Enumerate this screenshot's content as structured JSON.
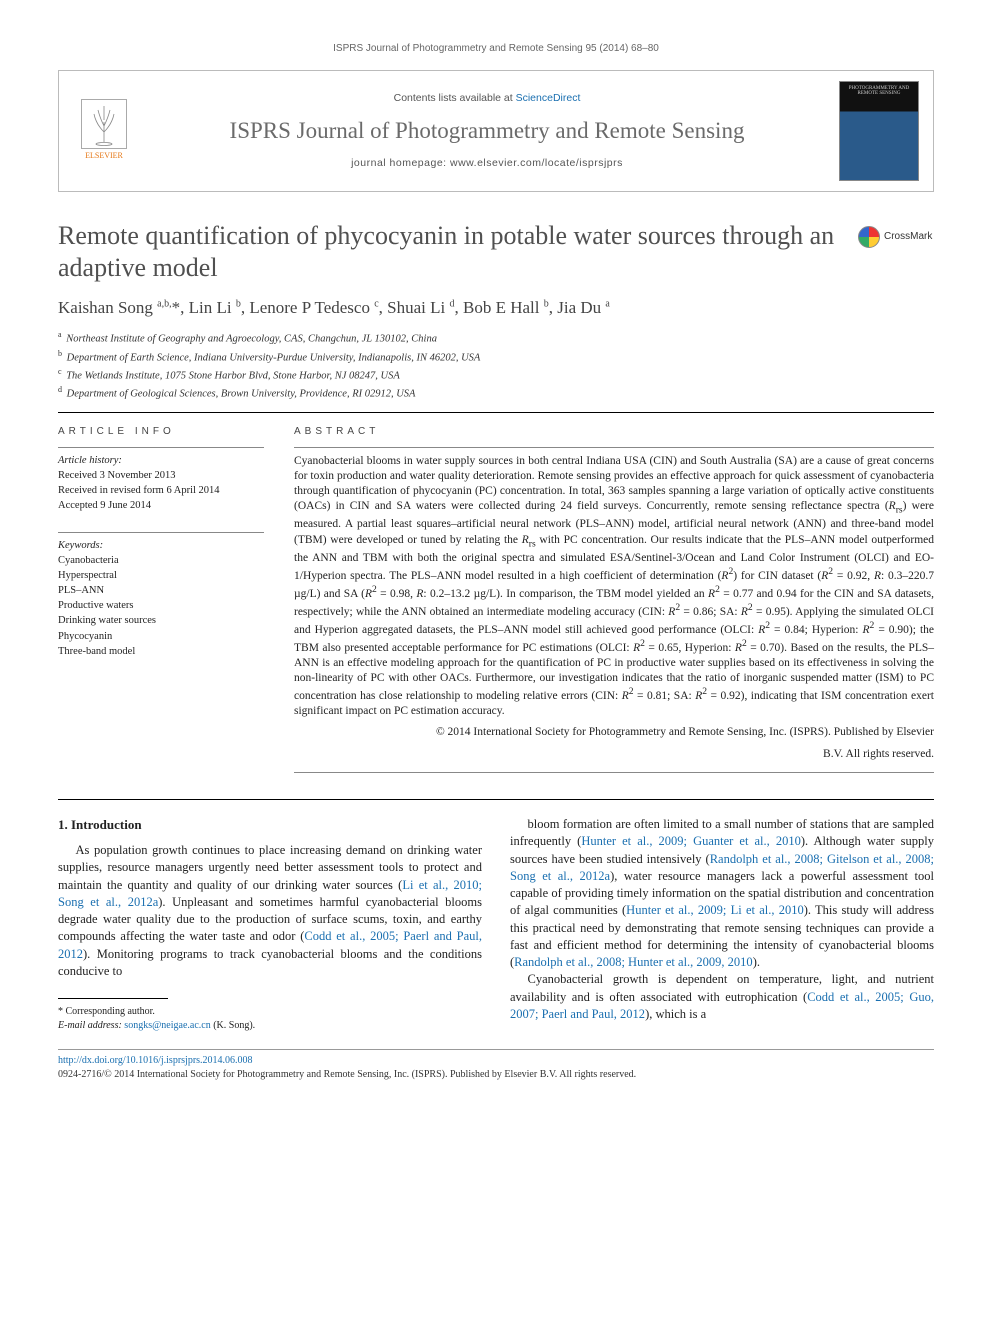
{
  "running_head": "ISPRS Journal of Photogrammetry and Remote Sensing 95 (2014) 68–80",
  "header": {
    "contents_prefix": "Contents lists available at ",
    "contents_link": "ScienceDirect",
    "journal_name": "ISPRS Journal of Photogrammetry and Remote Sensing",
    "homepage_prefix": "journal homepage: ",
    "homepage_url": "www.elsevier.com/locate/isprsjprs",
    "publisher_label": "ELSEVIER",
    "cover_label": "PHOTOGRAMMETRY AND REMOTE SENSING"
  },
  "title": "Remote quantification of phycocyanin in potable water sources through an adaptive model",
  "crossmark_label": "CrossMark",
  "authors_html": "Kaishan Song <sup>a,b,</sup>*, Lin Li <sup>b</sup>, Lenore P Tedesco <sup>c</sup>, Shuai Li <sup>d</sup>, Bob E Hall <sup>b</sup>, Jia Du <sup>a</sup>",
  "affiliations": [
    {
      "key": "a",
      "text": "Northeast Institute of Geography and Agroecology, CAS, Changchun, JL 130102, China"
    },
    {
      "key": "b",
      "text": "Department of Earth Science, Indiana University-Purdue University, Indianapolis, IN 46202, USA"
    },
    {
      "key": "c",
      "text": "The Wetlands Institute, 1075 Stone Harbor Blvd, Stone Harbor, NJ 08247, USA"
    },
    {
      "key": "d",
      "text": "Department of Geological Sciences, Brown University, Providence, RI 02912, USA"
    }
  ],
  "article_info": {
    "heading": "ARTICLE INFO",
    "history_label": "Article history:",
    "received": "Received 3 November 2013",
    "revised": "Received in revised form 6 April 2014",
    "accepted": "Accepted 9 June 2014",
    "keywords_label": "Keywords:",
    "keywords": [
      "Cyanobacteria",
      "Hyperspectral",
      "PLS–ANN",
      "Productive waters",
      "Drinking water sources",
      "Phycocyanin",
      "Three-band model"
    ]
  },
  "abstract": {
    "heading": "ABSTRACT",
    "text_html": "Cyanobacterial blooms in water supply sources in both central Indiana USA (CIN) and South Australia (SA) are a cause of great concerns for toxin production and water quality deterioration. Remote sensing provides an effective approach for quick assessment of cyanobacteria through quantification of phycocyanin (PC) concentration. In total, 363 samples spanning a large variation of optically active constituents (OACs) in CIN and SA waters were collected during 24 field surveys. Concurrently, remote sensing reflectance spectra (<i>R</i><sub>rs</sub>) were measured. A partial least squares–artificial neural network (PLS–ANN) model, artificial neural network (ANN) and three-band model (TBM) were developed or tuned by relating the <i>R</i><sub>rs</sub> with PC concentration. Our results indicate that the PLS–ANN model outperformed the ANN and TBM with both the original spectra and simulated ESA/Sentinel-3/Ocean and Land Color Instrument (OLCI) and EO-1/Hyperion spectra. The PLS–ANN model resulted in a high coefficient of determination (<i>R</i><sup>2</sup>) for CIN dataset (<i>R</i><sup>2</sup> = 0.92, <i>R</i>: 0.3–220.7 µg/L) and SA (<i>R</i><sup>2</sup> = 0.98, <i>R</i>: 0.2–13.2 µg/L). In comparison, the TBM model yielded an <i>R</i><sup>2</sup> = 0.77 and 0.94 for the CIN and SA datasets, respectively; while the ANN obtained an intermediate modeling accuracy (CIN: <i>R</i><sup>2</sup> = 0.86; SA: <i>R</i><sup>2</sup> = 0.95). Applying the simulated OLCI and Hyperion aggregated datasets, the PLS–ANN model still achieved good performance (OLCI: <i>R</i><sup>2</sup> = 0.84; Hyperion: <i>R</i><sup>2</sup> = 0.90); the TBM also presented acceptable performance for PC estimations (OLCI: <i>R</i><sup>2</sup> = 0.65, Hyperion: <i>R</i><sup>2</sup> = 0.70). Based on the results, the PLS–ANN is an effective modeling approach for the quantification of PC in productive water supplies based on its effectiveness in solving the non-linearity of PC with other OACs. Furthermore, our investigation indicates that the ratio of inorganic suspended matter (ISM) to PC concentration has close relationship to modeling relative errors (CIN: <i>R</i><sup>2</sup> = 0.81; SA: <i>R</i><sup>2</sup> = 0.92), indicating that ISM concentration exert significant impact on PC estimation accuracy.",
    "copyright_line1": "© 2014 International Society for Photogrammetry and Remote Sensing, Inc. (ISPRS). Published by Elsevier",
    "copyright_line2": "B.V. All rights reserved."
  },
  "body": {
    "section_heading": "1. Introduction",
    "para1_html": "As population growth continues to place increasing demand on drinking water supplies, resource managers urgently need better assessment tools to protect and maintain the quantity and quality of our drinking water sources (<span class=\"body-link\">Li et al., 2010; Song et al., 2012a</span>). Unpleasant and sometimes harmful cyanobacterial blooms degrade water quality due to the production of surface scums, toxin, and earthy compounds affecting the water taste and odor (<span class=\"body-link\">Codd et al., 2005; Paerl and Paul, 2012</span>). Monitoring programs to track cyanobacterial blooms and the conditions conducive to",
    "para2_html": "bloom formation are often limited to a small number of stations that are sampled infrequently (<span class=\"body-link\">Hunter et al., 2009; Guanter et al., 2010</span>). Although water supply sources have been studied intensively (<span class=\"body-link\">Randolph et al., 2008; Gitelson et al., 2008; Song et al., 2012a</span>), water resource managers lack a powerful assessment tool capable of providing timely information on the spatial distribution and concentration of algal communities (<span class=\"body-link\">Hunter et al., 2009; Li et al., 2010</span>). This study will address this practical need by demonstrating that remote sensing techniques can provide a fast and efficient method for determining the intensity of cyanobacterial blooms (<span class=\"body-link\">Randolph et al., 2008; Hunter et al., 2009, 2010</span>).",
    "para3_html": "Cyanobacterial growth is dependent on temperature, light, and nutrient availability and is often associated with eutrophication (<span class=\"body-link\">Codd et al., 2005; Guo, 2007; Paerl and Paul, 2012</span>), which is a"
  },
  "footnotes": {
    "corr_label": "* Corresponding author.",
    "email_label": "E-mail address:",
    "email": "songks@neigae.ac.cn",
    "email_suffix": "(K. Song)."
  },
  "doi": {
    "url": "http://dx.doi.org/10.1016/j.isprsjprs.2014.06.008",
    "issn_line": "0924-2716/© 2014 International Society for Photogrammetry and Remote Sensing, Inc. (ISPRS). Published by Elsevier B.V. All rights reserved."
  }
}
